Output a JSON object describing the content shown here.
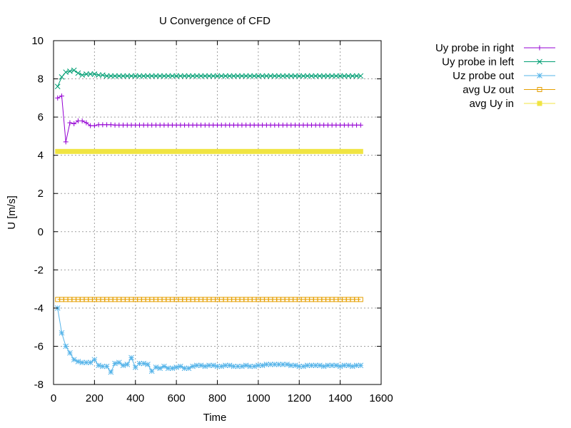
{
  "chart_data": {
    "type": "line",
    "title": "U Convergence of CFD",
    "xlabel": "Time",
    "ylabel": "U [m/s]",
    "xlim": [
      0,
      1600
    ],
    "ylim": [
      -8,
      10
    ],
    "xticks": [
      0,
      200,
      400,
      600,
      800,
      1000,
      1200,
      1400,
      1600
    ],
    "yticks": [
      -8,
      -6,
      -4,
      -2,
      0,
      2,
      4,
      6,
      8,
      10
    ],
    "grid": true,
    "legend_position": "outside-top-right",
    "series": [
      {
        "name": "Uy probe in right",
        "color": "#9400d3",
        "marker": "plus",
        "x": [
          20,
          40,
          60,
          80,
          100,
          120,
          140,
          160,
          180,
          200,
          220,
          240,
          260,
          280,
          300,
          320,
          340,
          360,
          380,
          400,
          420,
          440,
          460,
          480,
          500,
          520,
          540,
          560,
          580,
          600,
          620,
          640,
          660,
          680,
          700,
          720,
          740,
          760,
          780,
          800,
          820,
          840,
          860,
          880,
          900,
          920,
          940,
          960,
          980,
          1000,
          1020,
          1040,
          1060,
          1080,
          1100,
          1120,
          1140,
          1160,
          1180,
          1200,
          1220,
          1240,
          1260,
          1280,
          1300,
          1320,
          1340,
          1360,
          1380,
          1400,
          1420,
          1440,
          1460,
          1480,
          1500
        ],
        "y": [
          7.0,
          7.1,
          4.7,
          5.7,
          5.65,
          5.8,
          5.8,
          5.7,
          5.55,
          5.55,
          5.6,
          5.6,
          5.6,
          5.6,
          5.58,
          5.58,
          5.58,
          5.58,
          5.58,
          5.58,
          5.58,
          5.58,
          5.58,
          5.58,
          5.58,
          5.58,
          5.58,
          5.58,
          5.58,
          5.58,
          5.58,
          5.58,
          5.58,
          5.58,
          5.58,
          5.58,
          5.58,
          5.58,
          5.58,
          5.58,
          5.58,
          5.58,
          5.58,
          5.58,
          5.58,
          5.58,
          5.58,
          5.58,
          5.58,
          5.58,
          5.58,
          5.58,
          5.58,
          5.58,
          5.58,
          5.58,
          5.58,
          5.58,
          5.58,
          5.58,
          5.58,
          5.58,
          5.58,
          5.58,
          5.58,
          5.58,
          5.58,
          5.58,
          5.58,
          5.58,
          5.58,
          5.58,
          5.58,
          5.58,
          5.58
        ]
      },
      {
        "name": "Uy probe in left",
        "color": "#009e73",
        "marker": "cross",
        "x": [
          20,
          40,
          60,
          80,
          100,
          120,
          140,
          160,
          180,
          200,
          220,
          240,
          260,
          280,
          300,
          320,
          340,
          360,
          380,
          400,
          420,
          440,
          460,
          480,
          500,
          520,
          540,
          560,
          580,
          600,
          620,
          640,
          660,
          680,
          700,
          720,
          740,
          760,
          780,
          800,
          820,
          840,
          860,
          880,
          900,
          920,
          940,
          960,
          980,
          1000,
          1020,
          1040,
          1060,
          1080,
          1100,
          1120,
          1140,
          1160,
          1180,
          1200,
          1220,
          1240,
          1260,
          1280,
          1300,
          1320,
          1340,
          1360,
          1380,
          1400,
          1420,
          1440,
          1460,
          1480,
          1500
        ],
        "y": [
          7.6,
          8.1,
          8.35,
          8.4,
          8.45,
          8.3,
          8.2,
          8.25,
          8.25,
          8.25,
          8.2,
          8.2,
          8.15,
          8.15,
          8.15,
          8.15,
          8.15,
          8.15,
          8.15,
          8.15,
          8.15,
          8.15,
          8.15,
          8.15,
          8.15,
          8.15,
          8.15,
          8.15,
          8.15,
          8.15,
          8.15,
          8.15,
          8.15,
          8.15,
          8.15,
          8.15,
          8.15,
          8.15,
          8.15,
          8.15,
          8.15,
          8.15,
          8.15,
          8.15,
          8.15,
          8.15,
          8.15,
          8.15,
          8.15,
          8.15,
          8.15,
          8.15,
          8.15,
          8.15,
          8.15,
          8.15,
          8.15,
          8.15,
          8.15,
          8.15,
          8.15,
          8.15,
          8.15,
          8.15,
          8.15,
          8.15,
          8.15,
          8.15,
          8.15,
          8.15,
          8.15,
          8.15,
          8.15,
          8.15,
          8.15
        ]
      },
      {
        "name": "Uz probe out",
        "color": "#56b4e9",
        "marker": "star",
        "x": [
          20,
          40,
          60,
          80,
          100,
          120,
          140,
          160,
          180,
          200,
          220,
          240,
          260,
          280,
          300,
          320,
          340,
          360,
          380,
          400,
          420,
          440,
          460,
          480,
          500,
          520,
          540,
          560,
          580,
          600,
          620,
          640,
          660,
          680,
          700,
          720,
          740,
          760,
          780,
          800,
          820,
          840,
          860,
          880,
          900,
          920,
          940,
          960,
          980,
          1000,
          1020,
          1040,
          1060,
          1080,
          1100,
          1120,
          1140,
          1160,
          1180,
          1200,
          1220,
          1240,
          1260,
          1280,
          1300,
          1320,
          1340,
          1360,
          1380,
          1400,
          1420,
          1440,
          1460,
          1480,
          1500
        ],
        "y": [
          -4.0,
          -5.3,
          -6.0,
          -6.35,
          -6.7,
          -6.8,
          -6.85,
          -6.85,
          -6.85,
          -6.7,
          -7.0,
          -7.05,
          -7.05,
          -7.35,
          -6.9,
          -6.85,
          -7.0,
          -6.95,
          -6.6,
          -7.1,
          -6.9,
          -6.9,
          -6.95,
          -7.3,
          -7.1,
          -7.15,
          -7.05,
          -7.15,
          -7.15,
          -7.1,
          -7.05,
          -7.15,
          -7.15,
          -7.05,
          -7.0,
          -7.0,
          -7.05,
          -7.0,
          -7.0,
          -7.05,
          -7.05,
          -7.0,
          -7.0,
          -7.05,
          -7.05,
          -7.05,
          -7.0,
          -7.05,
          -7.05,
          -7.0,
          -7.0,
          -6.95,
          -6.95,
          -6.95,
          -6.95,
          -6.95,
          -6.95,
          -7.0,
          -7.0,
          -7.05,
          -7.05,
          -7.0,
          -7.0,
          -7.0,
          -7.0,
          -7.05,
          -7.0,
          -7.0,
          -7.0,
          -7.05,
          -7.0,
          -7.0,
          -7.05,
          -7.0,
          -7.0
        ]
      },
      {
        "name": "avg Uz out",
        "color": "#e69f00",
        "marker": "square",
        "constant": -3.55
      },
      {
        "name": "avg Uy in",
        "color": "#f0e442",
        "marker": "filled-square",
        "constant": 4.2
      }
    ]
  }
}
